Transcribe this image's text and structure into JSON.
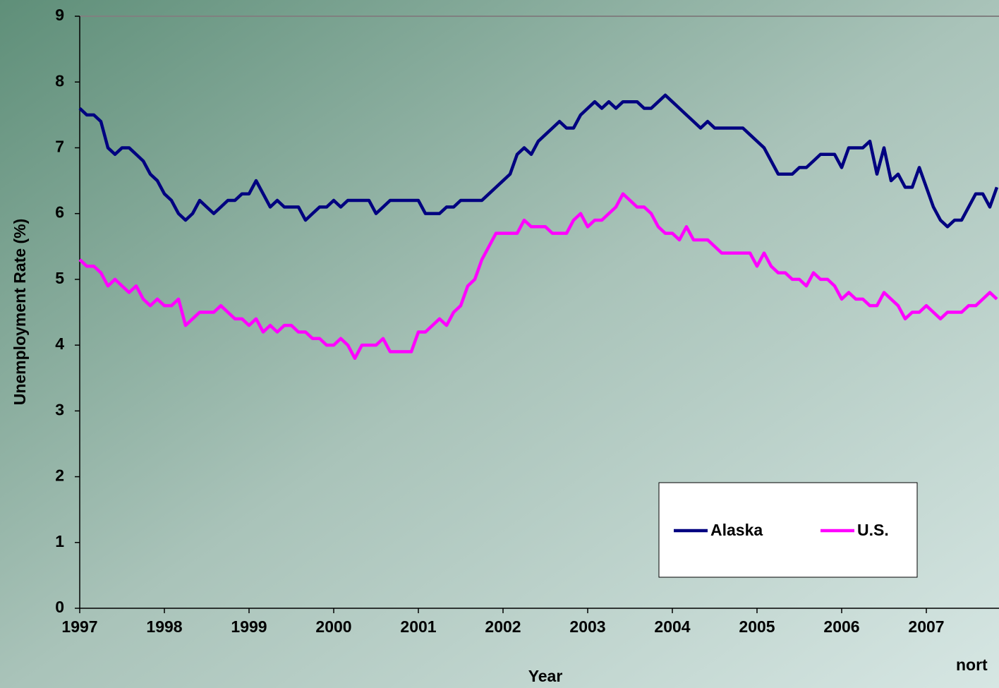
{
  "chart_data": {
    "type": "line",
    "x_label": "Year",
    "y_label": "Unemployment Rate (%)",
    "annotation": "nort",
    "categories": [
      "1997",
      null,
      null,
      null,
      null,
      null,
      null,
      null,
      null,
      null,
      null,
      null,
      "1998",
      null,
      null,
      null,
      null,
      null,
      null,
      null,
      null,
      null,
      null,
      null,
      "1999",
      null,
      null,
      null,
      null,
      null,
      null,
      null,
      null,
      null,
      null,
      null,
      "2000",
      null,
      null,
      null,
      null,
      null,
      null,
      null,
      null,
      null,
      null,
      null,
      "2001",
      null,
      null,
      null,
      null,
      null,
      null,
      null,
      null,
      null,
      null,
      null,
      "2002",
      null,
      null,
      null,
      null,
      null,
      null,
      null,
      null,
      null,
      null,
      null,
      "2003",
      null,
      null,
      null,
      null,
      null,
      null,
      null,
      null,
      null,
      null,
      null,
      "2004",
      null,
      null,
      null,
      null,
      null,
      null,
      null,
      null,
      null,
      null,
      null,
      "2005",
      null,
      null,
      null,
      null,
      null,
      null,
      null,
      null,
      null,
      null,
      null,
      "2006",
      null,
      null,
      null,
      null,
      null,
      null,
      null,
      null,
      null,
      null,
      null,
      "2007",
      null,
      null,
      null,
      null,
      null,
      null,
      null,
      null,
      null,
      null
    ],
    "series": [
      {
        "name": "Alaska",
        "color": "#000080",
        "values": [
          7.6,
          7.5,
          7.5,
          7.4,
          7.0,
          6.9,
          7.0,
          7.0,
          6.9,
          6.8,
          6.6,
          6.5,
          6.3,
          6.2,
          6.0,
          5.9,
          6.0,
          6.2,
          6.1,
          6.0,
          6.1,
          6.2,
          6.2,
          6.3,
          6.3,
          6.5,
          6.3,
          6.1,
          6.2,
          6.1,
          6.1,
          6.1,
          5.9,
          6.0,
          6.1,
          6.1,
          6.2,
          6.1,
          6.2,
          6.2,
          6.2,
          6.2,
          6.0,
          6.1,
          6.2,
          6.2,
          6.2,
          6.2,
          6.2,
          6.0,
          6.0,
          6.0,
          6.1,
          6.1,
          6.2,
          6.2,
          6.2,
          6.2,
          6.3,
          6.4,
          6.5,
          6.6,
          6.9,
          7.0,
          6.9,
          7.1,
          7.2,
          7.3,
          7.4,
          7.3,
          7.3,
          7.5,
          7.6,
          7.7,
          7.6,
          7.7,
          7.6,
          7.7,
          7.7,
          7.7,
          7.6,
          7.6,
          7.7,
          7.8,
          7.7,
          7.6,
          7.5,
          7.4,
          7.3,
          7.4,
          7.3,
          7.3,
          7.3,
          7.3,
          7.3,
          7.2,
          7.1,
          7.0,
          6.8,
          6.6,
          6.6,
          6.6,
          6.7,
          6.7,
          6.8,
          6.9,
          6.9,
          6.9,
          6.7,
          7.0,
          7.0,
          7.0,
          7.1,
          6.6,
          7.0,
          6.5,
          6.6,
          6.4,
          6.4,
          6.7,
          6.4,
          6.1,
          5.9,
          5.8,
          5.9,
          5.9,
          6.1,
          6.3,
          6.3,
          6.1,
          6.4
        ]
      },
      {
        "name": "U.S.",
        "color": "#ff00ff",
        "values": [
          5.3,
          5.2,
          5.2,
          5.1,
          4.9,
          5.0,
          4.9,
          4.8,
          4.9,
          4.7,
          4.6,
          4.7,
          4.6,
          4.6,
          4.7,
          4.3,
          4.4,
          4.5,
          4.5,
          4.5,
          4.6,
          4.5,
          4.4,
          4.4,
          4.3,
          4.4,
          4.2,
          4.3,
          4.2,
          4.3,
          4.3,
          4.2,
          4.2,
          4.1,
          4.1,
          4.0,
          4.0,
          4.1,
          4.0,
          3.8,
          4.0,
          4.0,
          4.0,
          4.1,
          3.9,
          3.9,
          3.9,
          3.9,
          4.2,
          4.2,
          4.3,
          4.4,
          4.3,
          4.5,
          4.6,
          4.9,
          5.0,
          5.3,
          5.5,
          5.7,
          5.7,
          5.7,
          5.7,
          5.9,
          5.8,
          5.8,
          5.8,
          5.7,
          5.7,
          5.7,
          5.9,
          6.0,
          5.8,
          5.9,
          5.9,
          6.0,
          6.1,
          6.3,
          6.2,
          6.1,
          6.1,
          6.0,
          5.8,
          5.7,
          5.7,
          5.6,
          5.8,
          5.6,
          5.6,
          5.6,
          5.5,
          5.4,
          5.4,
          5.4,
          5.4,
          5.4,
          5.2,
          5.4,
          5.2,
          5.1,
          5.1,
          5.0,
          5.0,
          4.9,
          5.1,
          5.0,
          5.0,
          4.9,
          4.7,
          4.8,
          4.7,
          4.7,
          4.6,
          4.6,
          4.8,
          4.7,
          4.6,
          4.4,
          4.5,
          4.5,
          4.6,
          4.5,
          4.4,
          4.5,
          4.5,
          4.5,
          4.6,
          4.6,
          4.7,
          4.8,
          4.7
        ]
      }
    ],
    "ylim": [
      0,
      9
    ],
    "yticks": [
      0,
      1,
      2,
      3,
      4,
      5,
      6,
      7,
      8,
      9
    ]
  }
}
